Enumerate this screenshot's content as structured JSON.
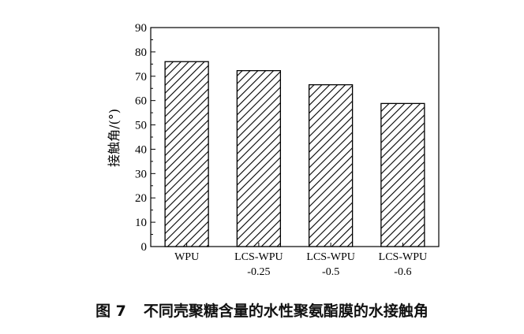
{
  "figure": {
    "number": "图 7",
    "caption": "不同壳聚糖含量的水性聚氨酯膜的水接触角"
  },
  "chart_data": {
    "type": "bar",
    "categories": [
      [
        "WPU"
      ],
      [
        "LCS-WPU",
        "-0.25"
      ],
      [
        "LCS-WPU",
        "-0.5"
      ],
      [
        "LCS-WPU",
        "-0.6"
      ]
    ],
    "values": [
      76,
      72.3,
      66.5,
      58.8
    ],
    "ylabel": "接触角/(°)",
    "xlabel": "",
    "ylim": [
      0,
      90
    ],
    "yticks": [
      0,
      10,
      20,
      30,
      40,
      50,
      60,
      70,
      80,
      90
    ],
    "bar_fill": "diagonal-hatch",
    "bar_color": "#000000",
    "grid": false
  }
}
